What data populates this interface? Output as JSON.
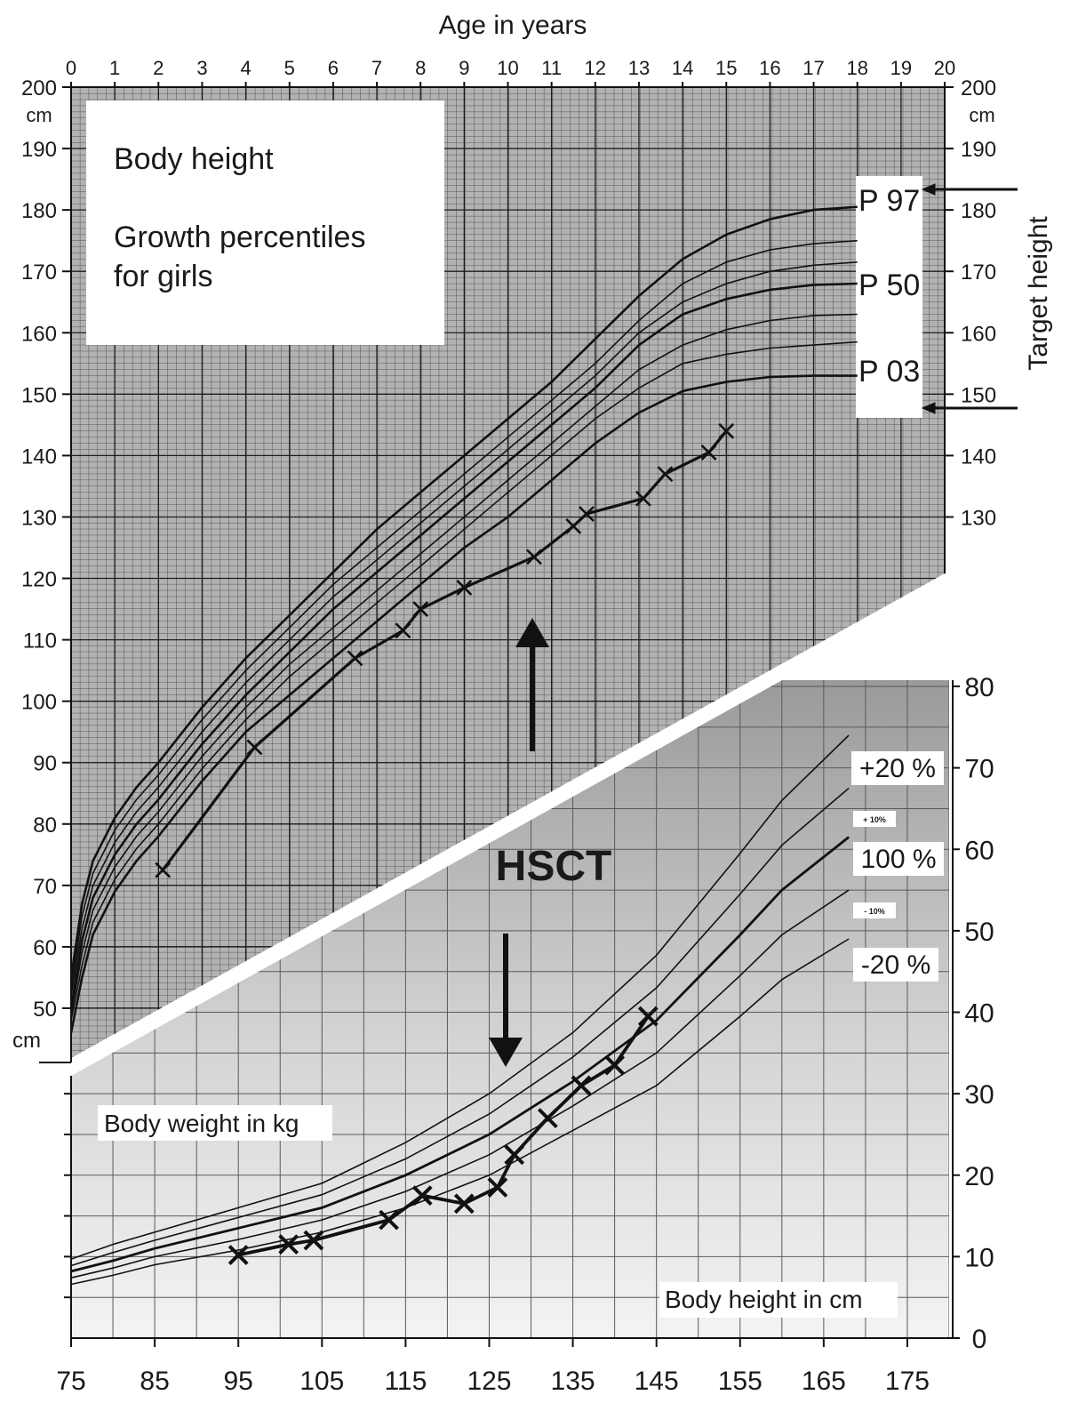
{
  "chart_data": [
    {
      "type": "line",
      "title": "Body height",
      "subtitle": "Growth percentiles for girls",
      "xlabel": "Age in years",
      "ylabel": "cm",
      "right_ylabel": "Target height",
      "xlim": [
        0,
        20
      ],
      "ylim": [
        45,
        200
      ],
      "x_ticks": [
        0,
        1,
        2,
        3,
        4,
        5,
        6,
        7,
        8,
        9,
        10,
        11,
        12,
        13,
        14,
        15,
        16,
        17,
        18,
        19,
        20
      ],
      "y_ticks": [
        50,
        60,
        70,
        80,
        90,
        100,
        110,
        120,
        130,
        140,
        150,
        160,
        170,
        180,
        190,
        200
      ],
      "right_y_ticks": [
        130,
        140,
        150,
        160,
        170,
        180,
        190,
        200
      ],
      "y_unit": "cm",
      "grid": true,
      "percentile_labels": [
        "P 97",
        "P 50",
        "P 03"
      ],
      "target_height_marks": [
        184,
        148
      ],
      "percentiles": [
        {
          "x": [
            0,
            0.25,
            0.5,
            1,
            1.5,
            2,
            3,
            4,
            5,
            6,
            7,
            8,
            9,
            10,
            11,
            12,
            13,
            14,
            15,
            16,
            17,
            18
          ],
          "values": [
            55,
            67,
            74,
            81,
            86,
            90,
            99,
            107,
            114,
            121,
            128,
            134,
            140,
            146,
            152,
            159,
            166,
            172,
            176,
            178.5,
            180,
            180.5
          ]
        },
        {
          "x": [
            0,
            0.25,
            0.5,
            1,
            1.5,
            2,
            3,
            4,
            5,
            6,
            7,
            8,
            9,
            10,
            11,
            12,
            13,
            14,
            15,
            16,
            17,
            18
          ],
          "values": [
            53,
            65,
            72,
            79,
            84,
            88,
            97,
            105,
            112,
            119,
            125,
            131,
            137,
            143,
            149,
            155,
            162,
            168,
            171.5,
            173.5,
            174.5,
            175
          ]
        },
        {
          "x": [
            0,
            0.25,
            0.5,
            1,
            1.5,
            2,
            3,
            4,
            5,
            6,
            7,
            8,
            9,
            10,
            11,
            12,
            13,
            14,
            15,
            16,
            17,
            18
          ],
          "values": [
            52,
            63,
            70,
            77,
            82,
            86,
            95,
            103,
            110,
            117,
            123,
            129,
            135,
            141,
            147,
            153,
            160,
            165,
            168,
            170,
            171,
            171.5
          ]
        },
        {
          "x": [
            0,
            0.25,
            0.5,
            1,
            1.5,
            2,
            3,
            4,
            5,
            6,
            7,
            8,
            9,
            10,
            11,
            12,
            13,
            14,
            15,
            16,
            17,
            18
          ],
          "values": [
            50,
            61,
            68,
            75,
            80,
            84,
            93,
            101,
            108,
            115,
            121,
            127,
            133,
            139,
            145,
            151,
            158,
            163,
            165.5,
            167,
            167.8,
            168
          ]
        },
        {
          "x": [
            0,
            0.25,
            0.5,
            1,
            1.5,
            2,
            3,
            4,
            5,
            6,
            7,
            8,
            9,
            10,
            11,
            12,
            13,
            14,
            15,
            16,
            17,
            18
          ],
          "values": [
            49,
            59,
            66,
            73,
            78,
            82,
            91,
            99,
            106,
            112,
            118,
            124,
            130,
            136,
            142,
            148,
            154,
            158,
            160.5,
            162,
            162.8,
            163
          ]
        },
        {
          "x": [
            0,
            0.25,
            0.5,
            1,
            1.5,
            2,
            3,
            4,
            5,
            6,
            7,
            8,
            9,
            10,
            11,
            12,
            13,
            14,
            15,
            16,
            17,
            18
          ],
          "values": [
            48,
            57,
            64,
            71,
            76,
            80,
            89,
            97,
            104,
            110,
            116,
            122,
            128,
            134,
            140,
            146,
            151,
            155,
            156.5,
            157.5,
            158,
            158.5
          ]
        },
        {
          "x": [
            0,
            0.25,
            0.5,
            1,
            1.5,
            2,
            3,
            4,
            5,
            6,
            7,
            8,
            9,
            10,
            11,
            12,
            13,
            14,
            15,
            16,
            17,
            18
          ],
          "values": [
            46,
            55,
            62,
            69,
            74,
            78,
            87,
            95,
            101,
            107,
            113,
            119,
            125,
            130,
            136,
            142,
            147,
            150.5,
            152,
            152.8,
            153,
            153
          ]
        }
      ],
      "patient_measurements": {
        "x": [
          2.1,
          4.2,
          6.5,
          7.6,
          8.0,
          9.0,
          10.6,
          11.5,
          11.8,
          13.1,
          13.6,
          14.6,
          15.0
        ],
        "values": [
          72.5,
          92.5,
          107,
          111.5,
          115,
          118.5,
          123.5,
          128.5,
          130.5,
          133,
          137,
          140.5,
          144
        ]
      }
    },
    {
      "type": "line",
      "title": "Body weight in kg",
      "xlabel": "Body height in cm",
      "x_ticks": [
        75,
        85,
        95,
        105,
        115,
        125,
        135,
        145,
        155,
        165,
        175
      ],
      "y_ticks": [
        0,
        10,
        20,
        30,
        40,
        50,
        60,
        70,
        80
      ],
      "xlim": [
        75,
        180
      ],
      "ylim": [
        0,
        80
      ],
      "grid": true,
      "series_labels": [
        "+20 %",
        "+ 10%",
        "100 %",
        "- 10%",
        "-20 %"
      ],
      "curves": [
        {
          "x": [
            75,
            80,
            85,
            95,
            105,
            115,
            125,
            135,
            145,
            155,
            160,
            168
          ],
          "values": [
            9.7,
            11.5,
            13.0,
            16.0,
            19.0,
            24.0,
            30.0,
            37.5,
            47.0,
            59.5,
            66.0,
            74.0
          ]
        },
        {
          "x": [
            75,
            80,
            85,
            95,
            105,
            115,
            125,
            135,
            145,
            155,
            160,
            168
          ],
          "values": [
            8.9,
            10.5,
            12.0,
            14.8,
            17.6,
            22.0,
            27.5,
            34.5,
            43.0,
            54.5,
            60.5,
            67.5
          ]
        },
        {
          "x": [
            75,
            80,
            85,
            95,
            105,
            115,
            125,
            135,
            145,
            155,
            160,
            168
          ],
          "values": [
            8.2,
            9.5,
            11.0,
            13.5,
            16.0,
            20.0,
            25.0,
            31.5,
            39.0,
            49.5,
            55.0,
            61.5
          ]
        },
        {
          "x": [
            75,
            80,
            85,
            95,
            105,
            115,
            125,
            135,
            145,
            155,
            160,
            168
          ],
          "values": [
            7.4,
            8.6,
            10.0,
            12.1,
            14.5,
            18.0,
            22.5,
            28.5,
            35.0,
            44.5,
            49.5,
            55.0
          ]
        },
        {
          "x": [
            75,
            80,
            85,
            95,
            105,
            115,
            125,
            135,
            145,
            155,
            160,
            168
          ],
          "values": [
            6.6,
            7.7,
            9.0,
            10.8,
            13.0,
            16.0,
            20.0,
            25.5,
            31.0,
            39.5,
            44.0,
            49.0
          ]
        }
      ],
      "patient_measurements": {
        "x": [
          95,
          101,
          104,
          113,
          117,
          122,
          126,
          128,
          132,
          136,
          140,
          144
        ],
        "values": [
          10.2,
          11.5,
          12.0,
          14.5,
          17.5,
          16.5,
          18.5,
          22.5,
          27.0,
          31.0,
          33.5,
          39.5
        ]
      }
    }
  ],
  "annotation": {
    "hsct": "HSCT"
  },
  "top_axis": {
    "unit_left": "cm",
    "unit_right": "cm",
    "bottom_unit": "cm"
  }
}
